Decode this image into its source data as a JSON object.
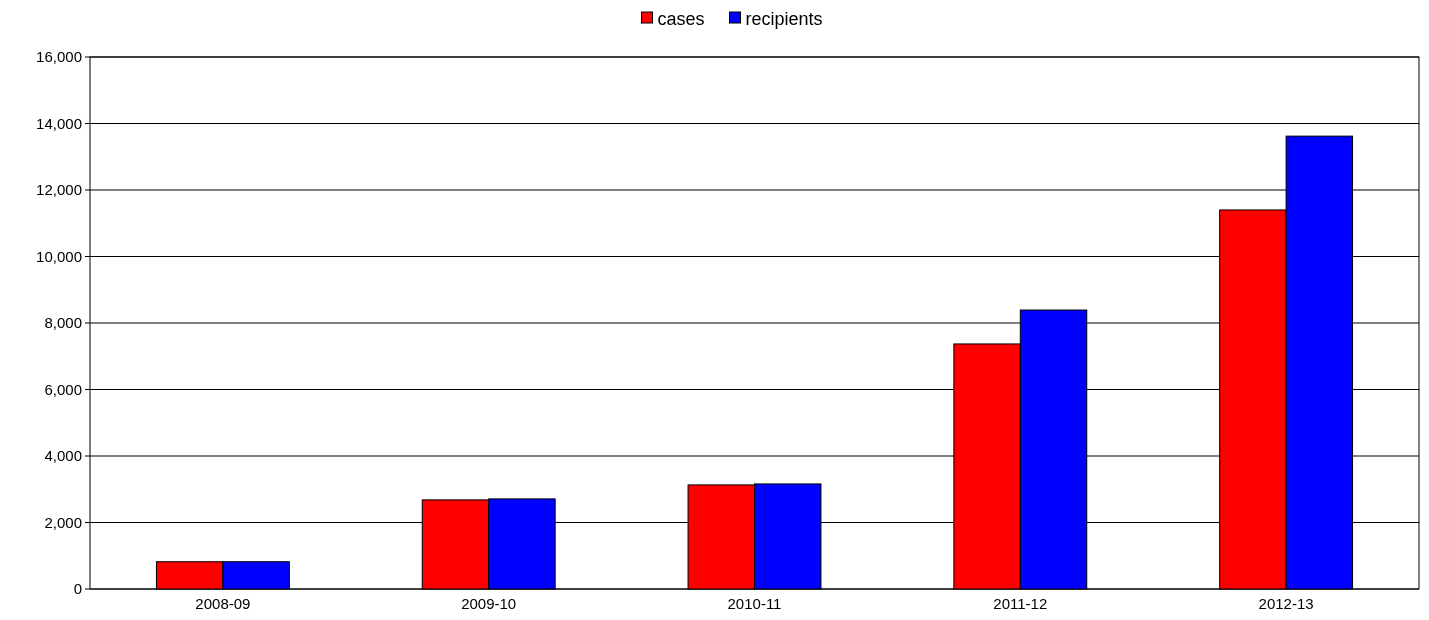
{
  "chart_data": {
    "type": "bar",
    "categories": [
      "2008-09",
      "2009-10",
      "2010-11",
      "2011-12",
      "2012-13"
    ],
    "series": [
      {
        "name": "cases",
        "color": "#ff0000",
        "values": [
          820,
          2680,
          3130,
          7370,
          11400
        ]
      },
      {
        "name": "recipients",
        "color": "#0000ff",
        "values": [
          820,
          2710,
          3160,
          8390,
          13620
        ]
      }
    ],
    "ylim": [
      0,
      16000
    ],
    "yticks": [
      {
        "value": 0,
        "label": "0"
      },
      {
        "value": 2000,
        "label": "2,000"
      },
      {
        "value": 4000,
        "label": "4,000"
      },
      {
        "value": 6000,
        "label": "6,000"
      },
      {
        "value": 8000,
        "label": "8,000"
      },
      {
        "value": 10000,
        "label": "10,000"
      },
      {
        "value": 12000,
        "label": "12,000"
      },
      {
        "value": 14000,
        "label": "14,000"
      },
      {
        "value": 16000,
        "label": "16,000"
      }
    ],
    "grid": "y",
    "legend": "top"
  }
}
